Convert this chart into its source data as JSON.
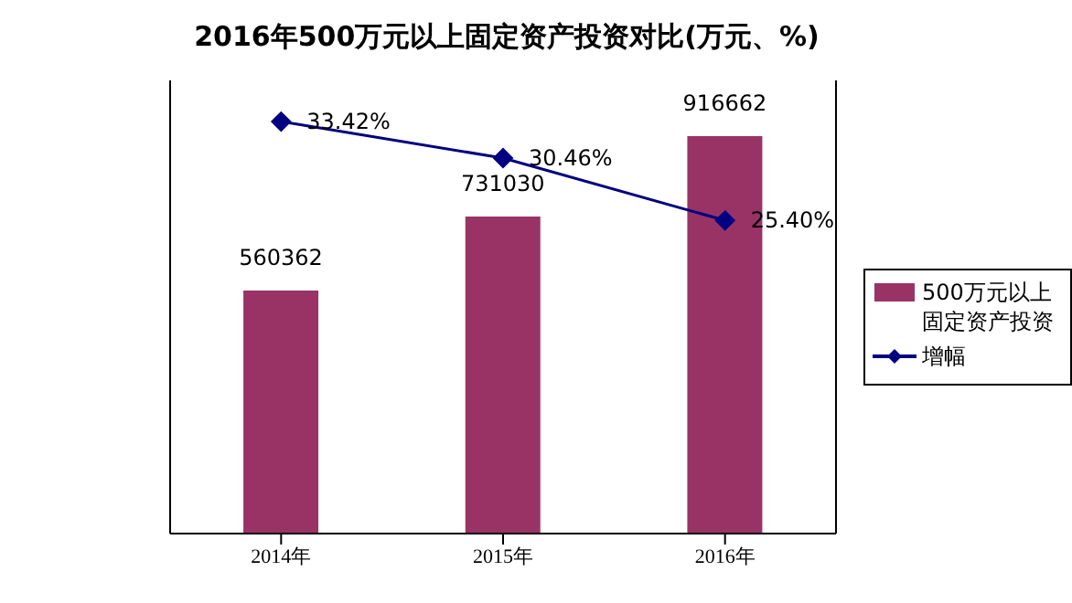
{
  "chart_data": {
    "type": "bar",
    "title": "2016年500万元以上固定资产投资对比(万元、%)",
    "categories": [
      "2014年",
      "2015年",
      "2016年"
    ],
    "series": [
      {
        "name": "500万元以上固定资产投资",
        "color": "#993366",
        "values": [
          560362,
          731030,
          916662
        ]
      },
      {
        "name": "增幅",
        "type": "line",
        "axis": "y2",
        "color": "#000080",
        "values": [
          33.42,
          30.46,
          25.4
        ],
        "marker": "diamond",
        "value_labels": [
          "33.42%",
          "30.46%",
          "25.40%"
        ]
      }
    ],
    "data_labels": true,
    "legend": "right",
    "tick_labels": "x"
  }
}
